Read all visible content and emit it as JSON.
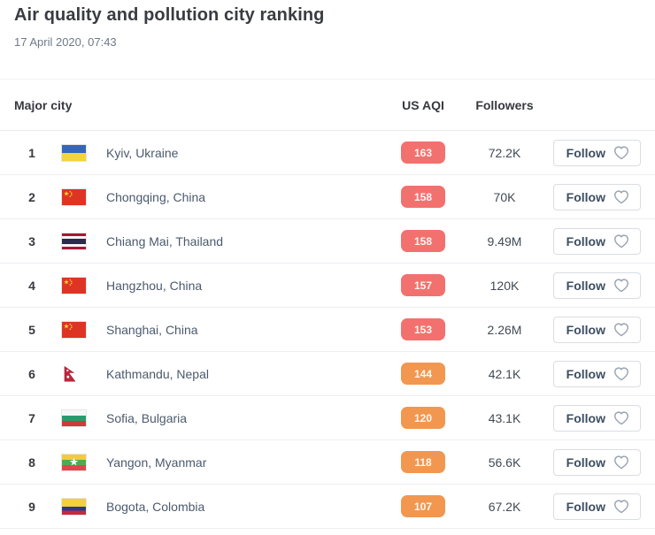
{
  "page": {
    "title": "Air quality and pollution city ranking",
    "timestamp": "17 April 2020, 07:43"
  },
  "table": {
    "headers": {
      "city": "Major city",
      "aqi": "US AQI",
      "followers": "Followers"
    },
    "follow_label": "Follow",
    "aqi_colors": {
      "unhealthy": "#f2716e",
      "unhealthy_sensitive": "#f2974f"
    },
    "rows": [
      {
        "rank": "1",
        "city": "Kyiv, Ukraine",
        "flag": "ukraine-flag-icon",
        "aqi": "163",
        "aqi_level": "unhealthy",
        "followers": "72.2K"
      },
      {
        "rank": "2",
        "city": "Chongqing, China",
        "flag": "china-flag-icon",
        "aqi": "158",
        "aqi_level": "unhealthy",
        "followers": "70K"
      },
      {
        "rank": "3",
        "city": "Chiang Mai, Thailand",
        "flag": "thailand-flag-icon",
        "aqi": "158",
        "aqi_level": "unhealthy",
        "followers": "9.49M"
      },
      {
        "rank": "4",
        "city": "Hangzhou, China",
        "flag": "china-flag-icon",
        "aqi": "157",
        "aqi_level": "unhealthy",
        "followers": "120K"
      },
      {
        "rank": "5",
        "city": "Shanghai, China",
        "flag": "china-flag-icon",
        "aqi": "153",
        "aqi_level": "unhealthy",
        "followers": "2.26M"
      },
      {
        "rank": "6",
        "city": "Kathmandu, Nepal",
        "flag": "nepal-flag-icon",
        "aqi": "144",
        "aqi_level": "unhealthy_sensitive",
        "followers": "42.1K"
      },
      {
        "rank": "7",
        "city": "Sofia, Bulgaria",
        "flag": "bulgaria-flag-icon",
        "aqi": "120",
        "aqi_level": "unhealthy_sensitive",
        "followers": "43.1K"
      },
      {
        "rank": "8",
        "city": "Yangon, Myanmar",
        "flag": "myanmar-flag-icon",
        "aqi": "118",
        "aqi_level": "unhealthy_sensitive",
        "followers": "56.6K"
      },
      {
        "rank": "9",
        "city": "Bogota, Colombia",
        "flag": "colombia-flag-icon",
        "aqi": "107",
        "aqi_level": "unhealthy_sensitive",
        "followers": "67.2K"
      }
    ]
  }
}
